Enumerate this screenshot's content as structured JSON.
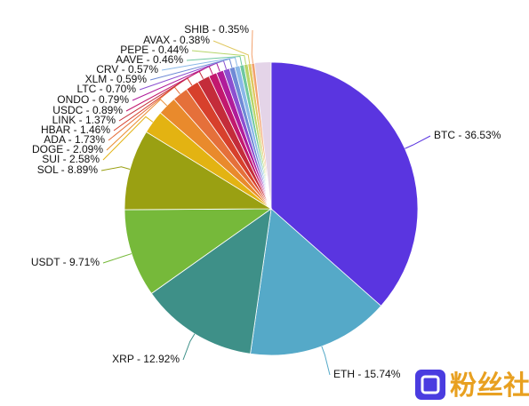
{
  "chart_data": {
    "type": "pie",
    "values": [
      36.53,
      15.74,
      12.92,
      9.71,
      8.89,
      2.58,
      2.09,
      1.73,
      1.46,
      1.37,
      0.89,
      0.79,
      0.7,
      0.59,
      0.57,
      0.46,
      0.44,
      0.38,
      0.35
    ],
    "value_labels": [
      "BTC - 36.53%",
      "ETH - 15.74%",
      "XRP - 12.92%",
      "USDT - 9.71%",
      "SOL - 8.89%",
      "SUI - 2.58%",
      "DOGE - 2.09%",
      "ADA - 1.73%",
      "HBAR - 1.46%",
      "LINK - 1.37%",
      "USDC - 0.89%",
      "ONDO - 0.79%",
      "LTC - 0.70%",
      "XLM - 0.59%",
      "CRV - 0.57%",
      "AAVE - 0.46%",
      "PEPE - 0.44%",
      "AVAX - 0.38%",
      "SHIB - 0.35%"
    ],
    "colors": [
      "#5a35e0",
      "#55a9c8",
      "#3e9088",
      "#76b93a",
      "#9aa012",
      "#e3b312",
      "#e98a2c",
      "#e5703a",
      "#d7402c",
      "#c42c3a",
      "#c2186e",
      "#b01c9a",
      "#8c4fd0",
      "#6f8ad6",
      "#8ab8e8",
      "#6ec8a0",
      "#b6d66a",
      "#e0c860",
      "#f2a26e"
    ]
  },
  "watermark": "粉丝社区"
}
